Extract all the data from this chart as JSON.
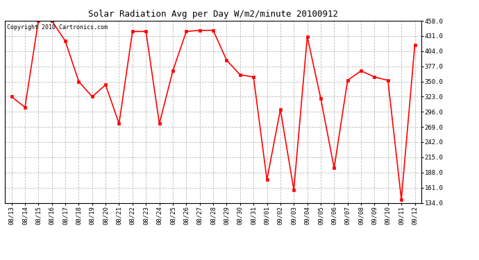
{
  "title": "Solar Radiation Avg per Day W/m2/minute 20100912",
  "copyright_text": "Copyright 2010 Cartronics.com",
  "labels": [
    "08/13",
    "08/14",
    "08/15",
    "08/16",
    "08/17",
    "08/18",
    "08/19",
    "08/20",
    "08/21",
    "08/22",
    "08/23",
    "08/24",
    "08/25",
    "08/26",
    "08/27",
    "08/28",
    "08/29",
    "08/30",
    "08/31",
    "09/01",
    "09/02",
    "09/03",
    "09/04",
    "09/05",
    "09/06",
    "09/07",
    "09/08",
    "09/09",
    "09/10",
    "09/11",
    "09/12"
  ],
  "values": [
    323.0,
    304.0,
    458.0,
    458.0,
    422.0,
    350.0,
    323.0,
    344.0,
    275.0,
    439.0,
    439.0,
    275.0,
    369.0,
    439.0,
    441.0,
    441.0,
    388.0,
    362.0,
    358.0,
    175.0,
    300.0,
    157.0,
    430.0,
    320.0,
    196.0,
    352.0,
    369.0,
    358.0,
    352.0,
    140.0,
    415.0
  ],
  "line_color": "#ff0000",
  "marker_color": "#ff0000",
  "background_color": "#ffffff",
  "grid_color": "#bbbbbb",
  "title_fontsize": 9,
  "copyright_fontsize": 6,
  "tick_fontsize": 6.5,
  "ylim": [
    134.0,
    458.0
  ],
  "yticks": [
    134.0,
    161.0,
    188.0,
    215.0,
    242.0,
    269.0,
    296.0,
    323.0,
    350.0,
    377.0,
    404.0,
    431.0,
    458.0
  ]
}
